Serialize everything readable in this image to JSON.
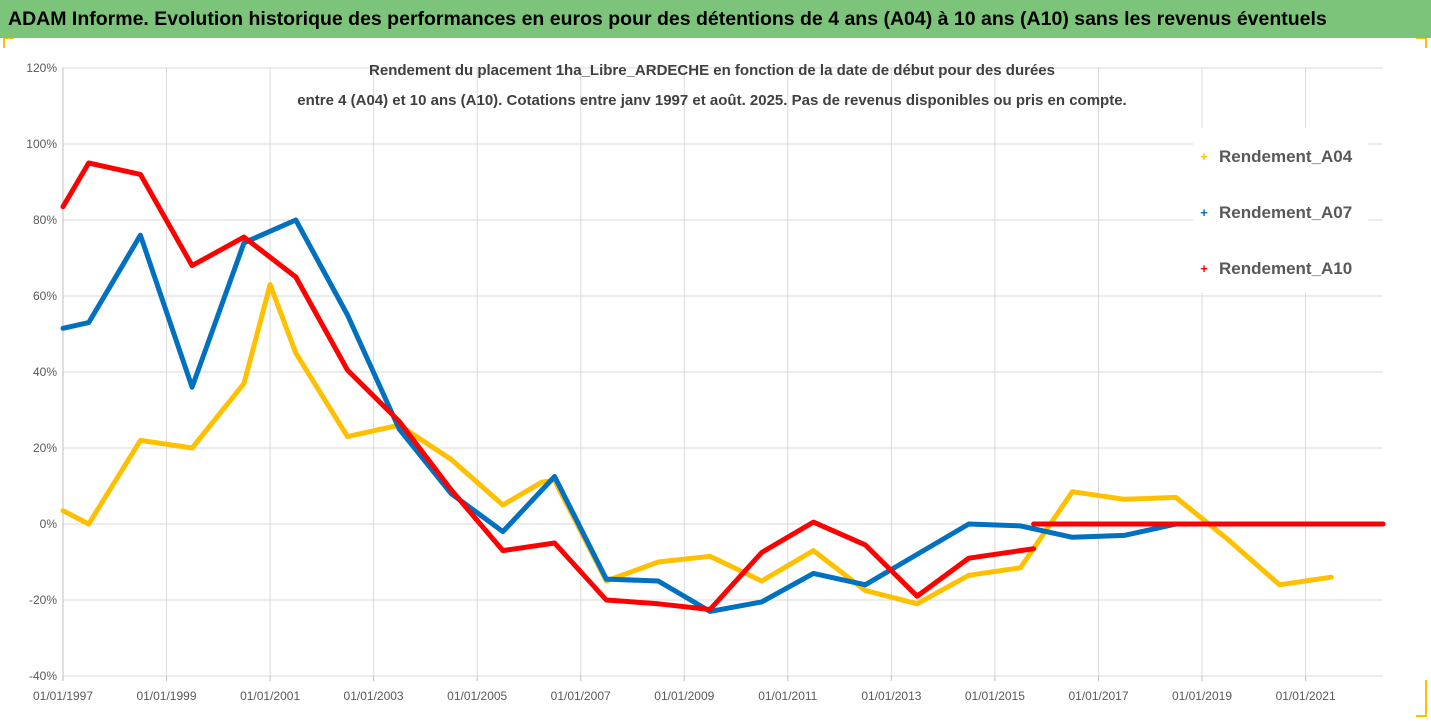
{
  "banner": {
    "title": "ADAM Informe. Evolution historique des performances en euros pour des détentions de 4 ans (A04) à 10 ans (A10) sans les revenus éventuels",
    "background": "#7cc47a"
  },
  "chart_data": {
    "type": "line",
    "title_line1": "Rendement du placement 1ha_Libre_ARDECHE en fonction de la date de début pour des durées",
    "title_line2": "entre 4 (A04) et 10 ans (A10). Cotations entre janv 1997 et août. 2025. Pas de revenus disponibles ou pris en compte.",
    "xlabel": "",
    "ylabel": "",
    "x_axis": {
      "type": "date",
      "range": [
        "1997-01-01",
        "2022-07-01"
      ],
      "tick_labels": [
        "01/01/1997",
        "01/01/1999",
        "01/01/2001",
        "01/01/2003",
        "01/01/2005",
        "01/01/2007",
        "01/01/2009",
        "01/01/2011",
        "01/01/2013",
        "01/01/2015",
        "01/01/2017",
        "01/01/2019",
        "01/01/2021"
      ]
    },
    "y_axis": {
      "range": [
        -40,
        120
      ],
      "ticks": [
        -40,
        -20,
        0,
        20,
        40,
        60,
        80,
        100,
        120
      ],
      "tick_labels": [
        "-40%",
        "-20%",
        "0%",
        "20%",
        "40%",
        "60%",
        "80%",
        "100%",
        "120%"
      ],
      "unit": "%"
    },
    "grid": true,
    "legend_position": "right",
    "series": [
      {
        "name": "Rendement_A04",
        "color": "#ffc000",
        "points": [
          [
            "1997-01-01",
            3.5
          ],
          [
            "1997-07-01",
            0
          ],
          [
            "1998-07-01",
            22
          ],
          [
            "1999-07-01",
            20
          ],
          [
            "2000-07-01",
            37
          ],
          [
            "2001-01-01",
            63
          ],
          [
            "2001-07-01",
            45
          ],
          [
            "2002-07-01",
            23
          ],
          [
            "2003-07-01",
            26
          ],
          [
            "2004-07-01",
            17
          ],
          [
            "2005-07-01",
            5
          ],
          [
            "2006-04-01",
            11
          ],
          [
            "2006-07-01",
            11.5
          ],
          [
            "2007-07-01",
            -15
          ],
          [
            "2008-07-01",
            -10
          ],
          [
            "2009-07-01",
            -8.5
          ],
          [
            "2010-07-01",
            -15
          ],
          [
            "2011-07-01",
            -7
          ],
          [
            "2012-07-01",
            -17.5
          ],
          [
            "2013-07-01",
            -21
          ],
          [
            "2014-07-01",
            -13.5
          ],
          [
            "2015-07-01",
            -11.5
          ],
          [
            "2016-07-01",
            8.5
          ],
          [
            "2017-07-01",
            6.5
          ],
          [
            "2018-07-01",
            7
          ],
          [
            "2019-07-01",
            -4
          ],
          [
            "2020-07-01",
            -16
          ],
          [
            "2021-07-01",
            -14
          ]
        ]
      },
      {
        "name": "Rendement_A07",
        "color": "#0070c0",
        "points": [
          [
            "1997-01-01",
            51.5
          ],
          [
            "1997-07-01",
            53
          ],
          [
            "1998-07-01",
            76
          ],
          [
            "1999-07-01",
            36
          ],
          [
            "2000-07-01",
            74
          ],
          [
            "2001-07-01",
            80
          ],
          [
            "2002-07-01",
            55
          ],
          [
            "2003-07-01",
            25
          ],
          [
            "2004-07-01",
            8
          ],
          [
            "2005-07-01",
            -2
          ],
          [
            "2006-07-01",
            12.5
          ],
          [
            "2007-07-01",
            -14.5
          ],
          [
            "2008-07-01",
            -15
          ],
          [
            "2009-07-01",
            -23
          ],
          [
            "2010-07-01",
            -20.5
          ],
          [
            "2011-07-01",
            -13
          ],
          [
            "2012-07-01",
            -16
          ],
          [
            "2013-07-01",
            -8
          ],
          [
            "2014-07-01",
            0
          ],
          [
            "2015-07-01",
            -0.5
          ],
          [
            "2016-07-01",
            -3.5
          ],
          [
            "2017-07-01",
            -3
          ],
          [
            "2018-07-01",
            0
          ],
          [
            "2019-07-01",
            0
          ],
          [
            "2020-07-01",
            0
          ],
          [
            "2021-07-01",
            0
          ],
          [
            "2022-07-01",
            0
          ]
        ]
      },
      {
        "name": "Rendement_A10",
        "color": "#ff0000",
        "points": [
          [
            "1997-01-01",
            83.5
          ],
          [
            "1997-07-01",
            95
          ],
          [
            "1998-07-01",
            92
          ],
          [
            "1999-07-01",
            68
          ],
          [
            "2000-07-01",
            75.5
          ],
          [
            "2001-07-01",
            65
          ],
          [
            "2002-07-01",
            40.5
          ],
          [
            "2003-07-01",
            27
          ],
          [
            "2004-07-01",
            9
          ],
          [
            "2005-07-01",
            -7
          ],
          [
            "2006-07-01",
            -5
          ],
          [
            "2007-07-01",
            -20
          ],
          [
            "2008-07-01",
            -21
          ],
          [
            "2009-07-01",
            -22.5
          ],
          [
            "2010-07-01",
            -7.5
          ],
          [
            "2011-07-01",
            0.5
          ],
          [
            "2012-07-01",
            -5.5
          ],
          [
            "2013-07-01",
            -19
          ],
          [
            "2014-07-01",
            -9
          ],
          [
            "2015-07-01",
            -7
          ],
          [
            "2015-10-01",
            -6.5
          ]
        ]
      },
      {
        "name": "Rendement_A10",
        "color": "#ff0000",
        "legend": false,
        "points": [
          [
            "2015-10-01",
            0
          ],
          [
            "2016-07-01",
            0
          ],
          [
            "2017-07-01",
            0
          ],
          [
            "2018-07-01",
            0
          ],
          [
            "2019-07-01",
            0
          ],
          [
            "2020-07-01",
            0
          ],
          [
            "2021-07-01",
            0
          ],
          [
            "2022-07-01",
            0
          ]
        ]
      }
    ]
  }
}
